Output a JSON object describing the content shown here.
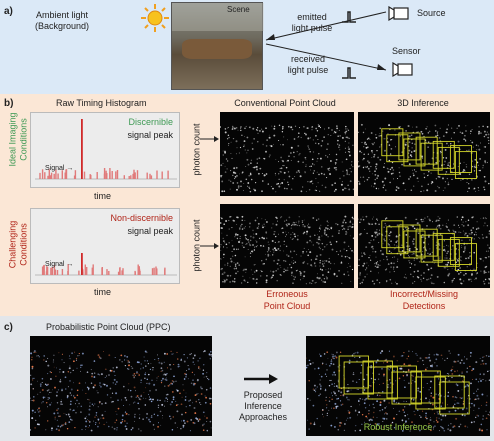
{
  "panel_a": {
    "label": "a)",
    "ambient_line1": "Ambient light",
    "ambient_line2": "(Background)",
    "scene_label": "Scene",
    "emitted_line1": "emitted",
    "emitted_line2": "light pulse",
    "source_label": "Source",
    "received_line1": "received",
    "received_line2": "light pulse",
    "sensor_label": "Sensor"
  },
  "panel_b": {
    "label": "b)",
    "col_hist_title": "Raw Timing Histogram",
    "col_pc_title": "Conventional Point Cloud",
    "col_3d_title": "3D Inference",
    "row1_label_line1": "Ideal Imaging",
    "row1_label_line2": "Conditions",
    "row2_label_line1": "Challenging",
    "row2_label_line2": "Conditions",
    "row1_peak_word": "Discernible",
    "row1_peak_rest": "signal peak",
    "row2_peak_word": "Non-discernible",
    "row2_peak_rest": "signal peak",
    "signal_label": "Signal →",
    "time_label": "time",
    "photon_count_label": "photon count",
    "caption_pc_line1": "Erroneous",
    "caption_pc_line2": "Point Cloud",
    "caption_3d_line1": "Incorrect/Missing",
    "caption_3d_line2": "Detections"
  },
  "panel_c": {
    "label": "c)",
    "ppc_title": "Probabilistic Point Cloud (PPC)",
    "proposed_line1": "Proposed",
    "proposed_line2": "Inference",
    "proposed_line3": "Approaches",
    "robust_label": "Robust Inference"
  },
  "colors": {
    "panel_a_bg": "#dbe9f7",
    "panel_b_bg": "#fbe7d6",
    "panel_c_bg": "#e3e6ea",
    "green_text": "#3f9a55",
    "red_text": "#b02418",
    "box_yellow": "#d4d62a",
    "hist_bar": "#e07a7a"
  }
}
